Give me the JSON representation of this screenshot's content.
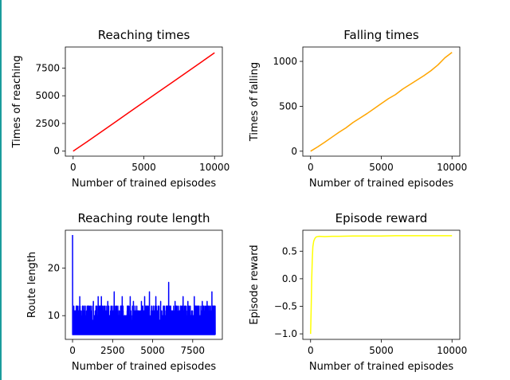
{
  "chart_data": [
    {
      "type": "line",
      "title": "Reaching times",
      "xlabel": "Number of trained episodes",
      "ylabel": "Times of reaching",
      "color": "#ff0000",
      "xlim": [
        -550,
        10550
      ],
      "ylim": [
        -450,
        9400
      ],
      "xticks": [
        0,
        5000,
        10000
      ],
      "xticklabels": [
        "0",
        "5000",
        "10000"
      ],
      "yticks": [
        0,
        2500,
        5000,
        7500
      ],
      "yticklabels": [
        "0",
        "2500",
        "5000",
        "7500"
      ],
      "series": [
        {
          "x": [
            0,
            1000,
            2000,
            3000,
            4000,
            5000,
            6000,
            7000,
            8000,
            9000,
            10000
          ],
          "values": [
            0,
            860,
            1750,
            2640,
            3540,
            4430,
            5320,
            6200,
            7090,
            7980,
            8880
          ]
        }
      ]
    },
    {
      "type": "line",
      "title": "Falling times",
      "xlabel": "Number of trained episodes",
      "ylabel": "Times of falling",
      "color": "#ffa500",
      "xlim": [
        -550,
        10550
      ],
      "ylim": [
        -55,
        1160
      ],
      "xticks": [
        0,
        5000,
        10000
      ],
      "xticklabels": [
        "0",
        "5000",
        "10000"
      ],
      "yticks": [
        0,
        500,
        1000
      ],
      "yticklabels": [
        "0",
        "500",
        "1000"
      ],
      "series": [
        {
          "x": [
            0,
            500,
            1000,
            1500,
            2000,
            2500,
            3000,
            3500,
            4000,
            4500,
            5000,
            5500,
            6000,
            6500,
            7000,
            7500,
            8000,
            8500,
            9000,
            9500,
            10000
          ],
          "values": [
            0,
            48,
            100,
            155,
            210,
            260,
            320,
            370,
            420,
            475,
            530,
            585,
            630,
            690,
            740,
            790,
            840,
            895,
            960,
            1040,
            1100
          ]
        }
      ]
    },
    {
      "type": "line",
      "title": "Reaching route length",
      "xlabel": "Number of trained episodes",
      "ylabel": "Route length",
      "color": "#0000ff",
      "xlim": [
        -450,
        9350
      ],
      "ylim": [
        5,
        28
      ],
      "xticks": [
        0,
        2500,
        5000,
        7500
      ],
      "xticklabels": [
        "0",
        "2500",
        "5000",
        "7500"
      ],
      "yticks": [
        10,
        20
      ],
      "yticklabels": [
        "10",
        "20"
      ],
      "series": [
        {
          "x_start": 0,
          "x_end": 8900,
          "baseline": 6,
          "typical_max": 12,
          "peaks": [
            {
              "x": 0,
              "value": 27
            },
            {
              "x": 450,
              "value": 14
            },
            {
              "x": 1300,
              "value": 13
            },
            {
              "x": 1600,
              "value": 14
            },
            {
              "x": 1800,
              "value": 14
            },
            {
              "x": 2200,
              "value": 13
            },
            {
              "x": 2600,
              "value": 15
            },
            {
              "x": 3100,
              "value": 14
            },
            {
              "x": 3600,
              "value": 14
            },
            {
              "x": 3800,
              "value": 13
            },
            {
              "x": 4300,
              "value": 13
            },
            {
              "x": 4500,
              "value": 14
            },
            {
              "x": 4800,
              "value": 15
            },
            {
              "x": 5200,
              "value": 14
            },
            {
              "x": 5500,
              "value": 13
            },
            {
              "x": 6000,
              "value": 17
            },
            {
              "x": 6400,
              "value": 13
            },
            {
              "x": 6900,
              "value": 14
            },
            {
              "x": 7200,
              "value": 13
            },
            {
              "x": 7600,
              "value": 14
            },
            {
              "x": 8100,
              "value": 13
            },
            {
              "x": 8400,
              "value": 13
            },
            {
              "x": 8700,
              "value": 15
            }
          ]
        }
      ]
    },
    {
      "type": "line",
      "title": "Episode reward",
      "xlabel": "Number of trained episodes",
      "ylabel": "Episode reward",
      "color": "#ffff00",
      "xlim": [
        -550,
        10550
      ],
      "ylim": [
        -1.1,
        0.88
      ],
      "xticks": [
        0,
        5000,
        10000
      ],
      "xticklabels": [
        "0",
        "5000",
        "10000"
      ],
      "yticks": [
        -1.0,
        -0.5,
        0.0,
        0.5
      ],
      "yticklabels": [
        "−1.0",
        "−0.5",
        "0.0",
        "0.5"
      ],
      "series": [
        {
          "x": [
            0,
            40,
            80,
            120,
            160,
            220,
            300,
            400,
            600,
            1000,
            1500,
            2000,
            3000,
            4000,
            5000,
            6000,
            7000,
            8000,
            9000,
            10000
          ],
          "values": [
            -1.0,
            -0.55,
            0.0,
            0.35,
            0.58,
            0.68,
            0.73,
            0.76,
            0.77,
            0.765,
            0.77,
            0.77,
            0.775,
            0.775,
            0.775,
            0.78,
            0.78,
            0.78,
            0.78,
            0.78
          ]
        }
      ]
    }
  ]
}
